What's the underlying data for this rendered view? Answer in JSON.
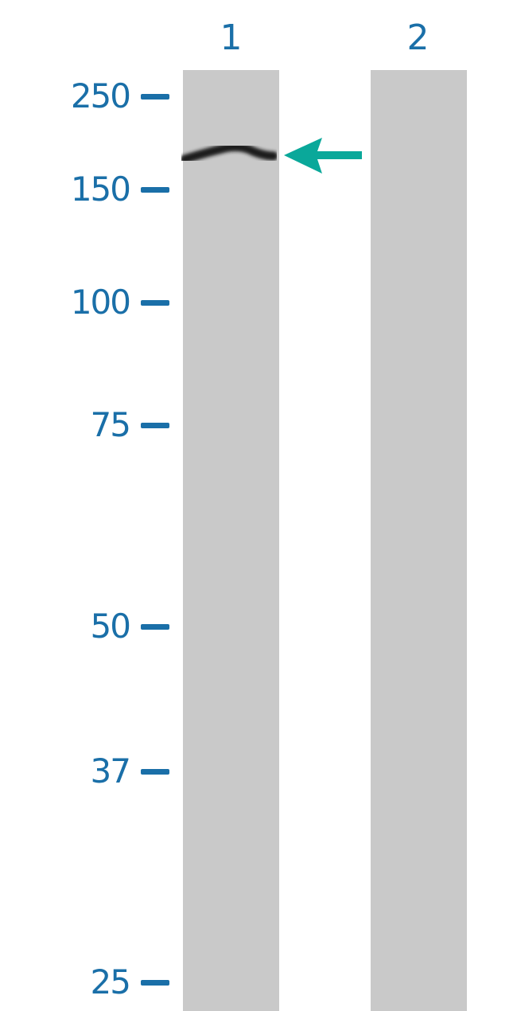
{
  "lanes": [
    {
      "label": "1"
    },
    {
      "label": "2"
    }
  ],
  "markers": [
    {
      "label": "250",
      "kda": 250
    },
    {
      "label": "150",
      "kda": 150
    },
    {
      "label": "100",
      "kda": 100
    },
    {
      "label": "75",
      "kda": 75
    },
    {
      "label": "50",
      "kda": 50
    },
    {
      "label": "37",
      "kda": 37
    },
    {
      "label": "25",
      "kda": 25
    }
  ],
  "colors": {
    "marker_text": "#1a6fa8",
    "arrow": "#0aa89a",
    "lane": "#c9c9c9",
    "band": "#1a1a1a"
  },
  "band": {
    "lane": "1",
    "arrow_icon": "arrow-left-icon"
  }
}
